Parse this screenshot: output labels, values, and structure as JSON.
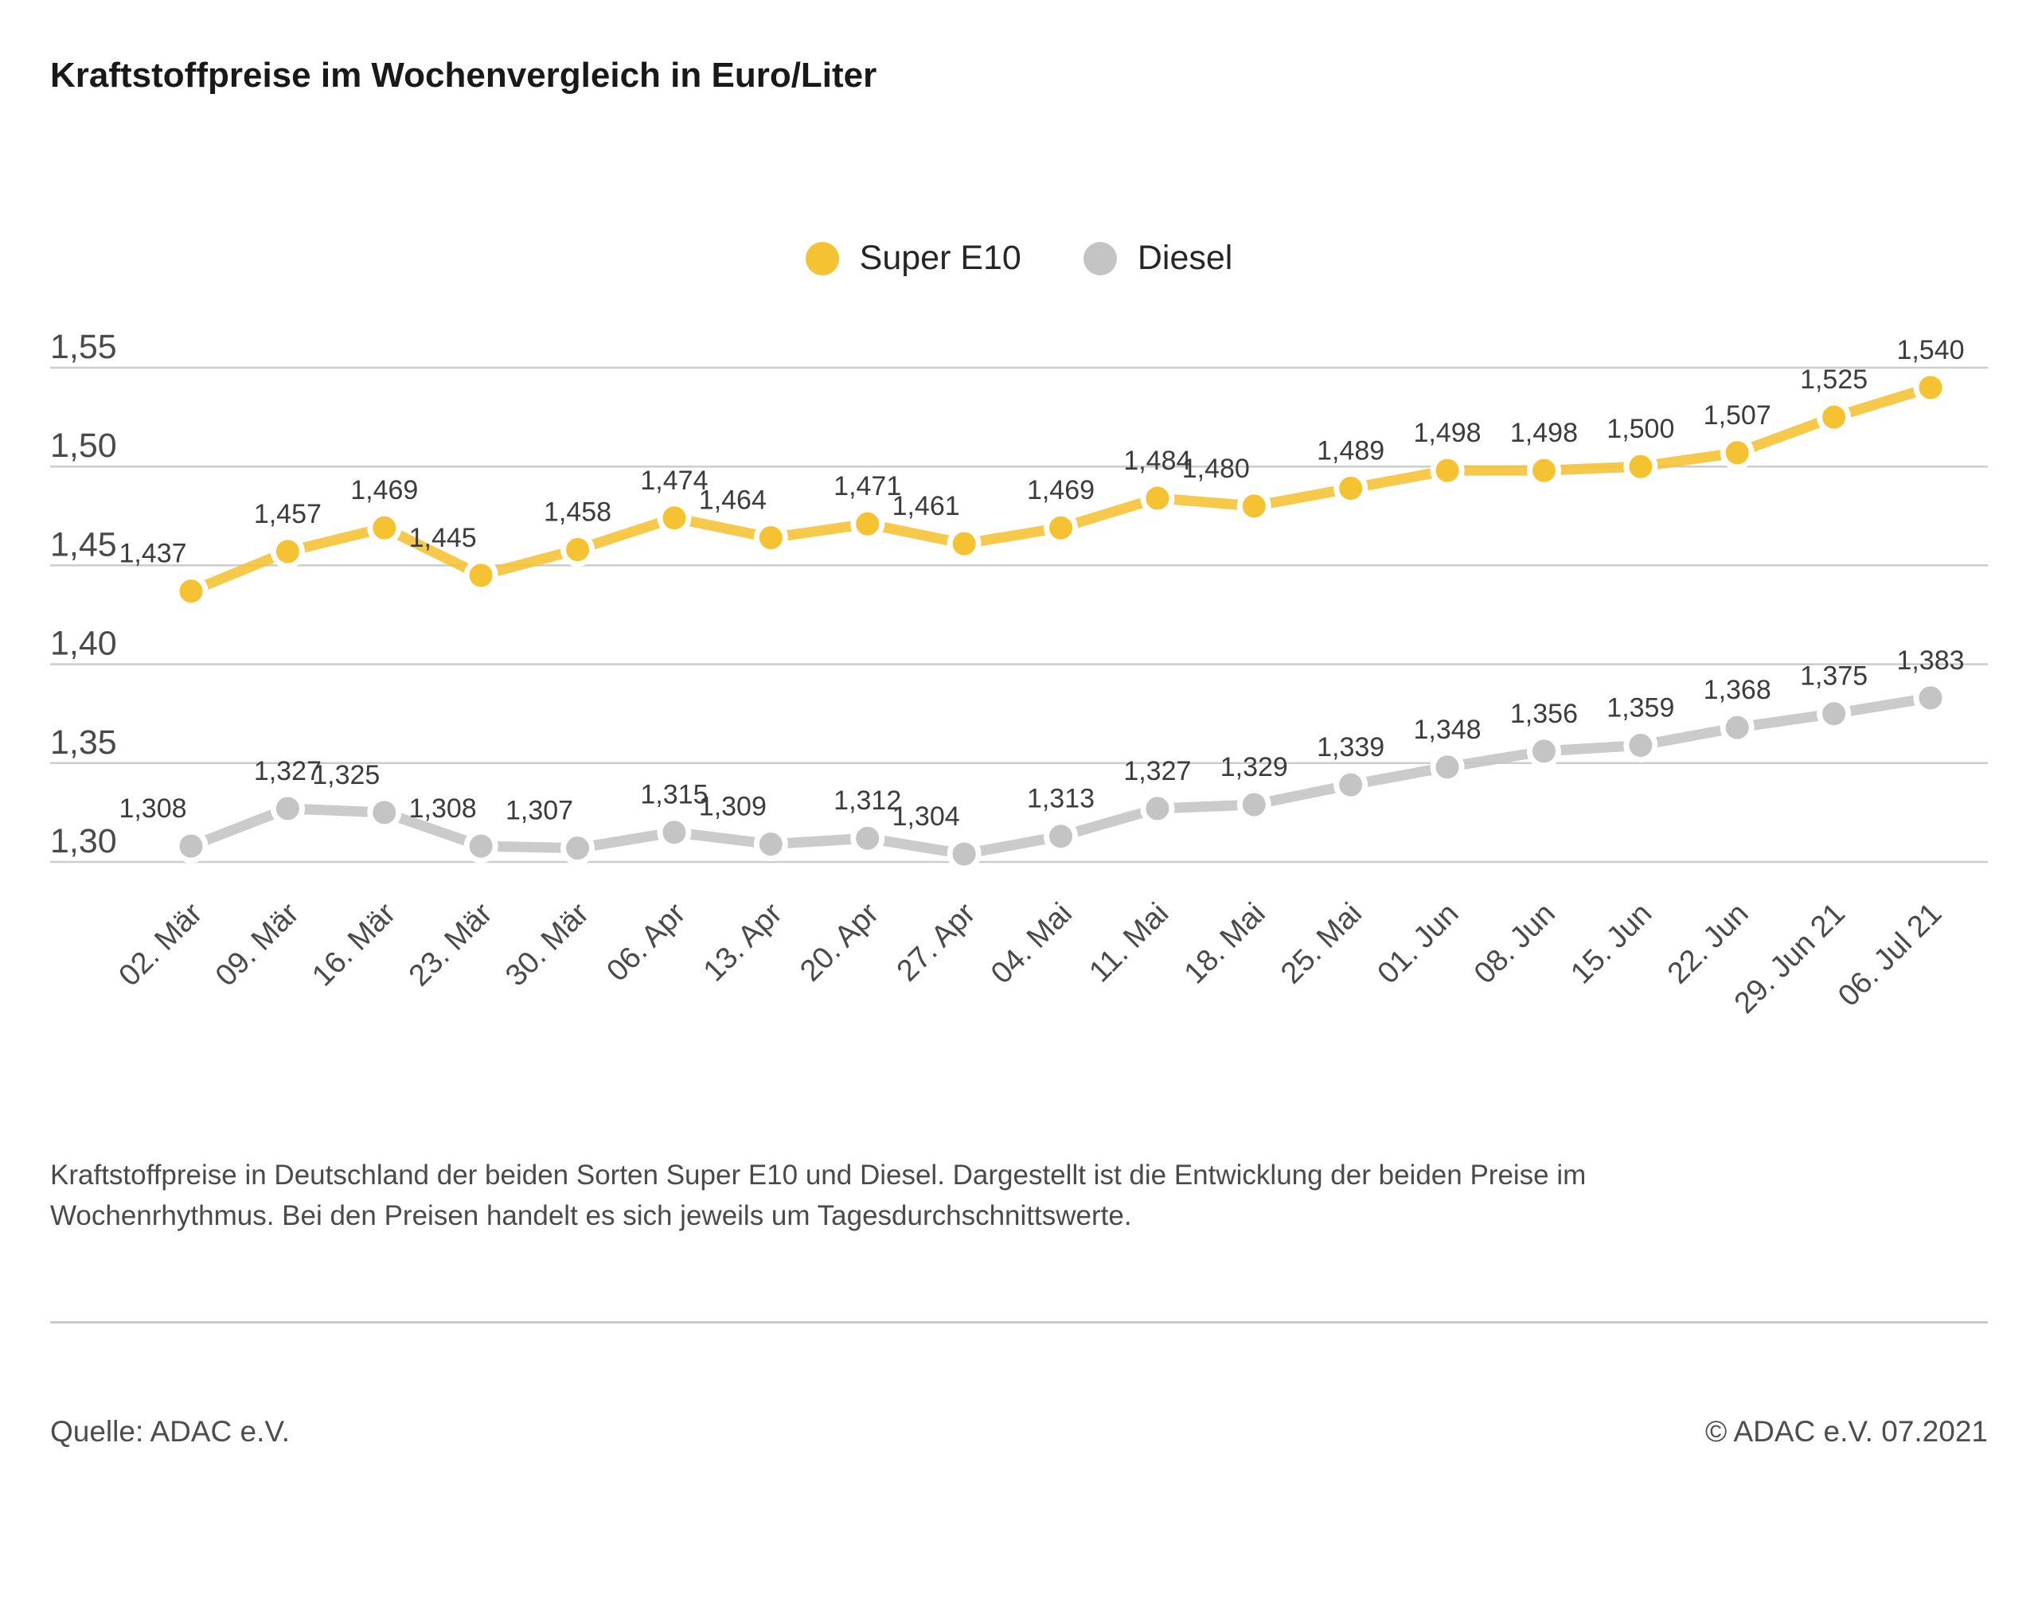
{
  "title": "Kraftstoffpreise im Wochenvergleich in Euro/Liter",
  "legend": {
    "items": [
      {
        "label": "Super E10",
        "color": "#F5C232"
      },
      {
        "label": "Diesel",
        "color": "#C4C4C4"
      }
    ]
  },
  "chart_data": {
    "type": "line",
    "title": "Kraftstoffpreise im Wochenvergleich in Euro/Liter",
    "unit": "Euro/Liter",
    "categories": [
      "02. Mär",
      "09. Mär",
      "16. Mär",
      "23. Mär",
      "30. Mär",
      "06. Apr",
      "13. Apr",
      "20. Apr",
      "27. Apr",
      "04. Mai",
      "11. Mai",
      "18. Mai",
      "25. Mai",
      "01. Jun",
      "08. Jun",
      "15. Jun",
      "22. Jun",
      "29. Jun 21",
      "06. Jul 21"
    ],
    "series": [
      {
        "name": "Super E10",
        "color": "#F5C232",
        "values": [
          1.437,
          1.457,
          1.469,
          1.445,
          1.458,
          1.474,
          1.464,
          1.471,
          1.461,
          1.469,
          1.484,
          1.48,
          1.489,
          1.498,
          1.498,
          1.5,
          1.507,
          1.525,
          1.54
        ]
      },
      {
        "name": "Diesel",
        "color": "#C4C4C4",
        "values": [
          1.308,
          1.327,
          1.325,
          1.308,
          1.307,
          1.315,
          1.309,
          1.312,
          1.304,
          1.313,
          1.327,
          1.329,
          1.339,
          1.348,
          1.356,
          1.359,
          1.368,
          1.375,
          1.383
        ]
      }
    ],
    "ylim": [
      1.3,
      1.55
    ],
    "yticks": [
      1.55,
      1.5,
      1.45,
      1.4,
      1.35,
      1.3
    ],
    "grid": true,
    "legend_position": "top-center",
    "value_labels": true,
    "decimal_separator": ","
  },
  "description": "Kraftstoffpreise in Deutschland der beiden Sorten Super E10 und Diesel. Dargestellt ist die Entwicklung der beiden Preise im\nWochenrhythmus. Bei den Preisen handelt es sich jeweils um Tagesdurchschnittswerte.",
  "footer": {
    "source": "Quelle: ADAC e.V.",
    "copyright": "© ADAC e.V. 07.2021"
  }
}
